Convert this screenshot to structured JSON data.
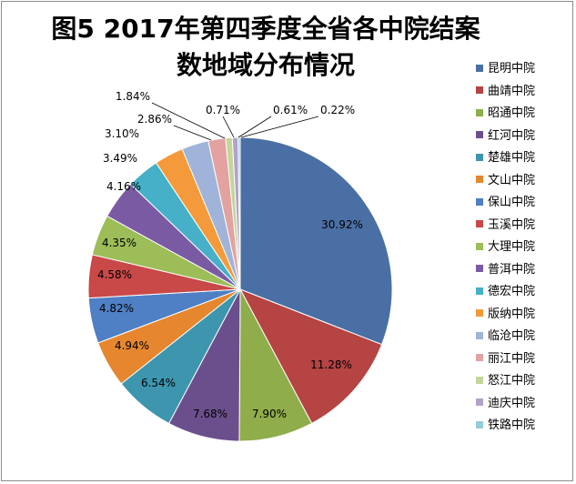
{
  "chart_data": {
    "type": "pie",
    "title_line1": "图5 2017年第四季度全省各中院结案",
    "title_line2": "数地域分布情况",
    "categories": [
      "昆明中院",
      "曲靖中院",
      "昭通中院",
      "红河中院",
      "楚雄中院",
      "文山中院",
      "保山中院",
      "玉溪中院",
      "大理中院",
      "普洱中院",
      "德宏中院",
      "版纳中院",
      "临沧中院",
      "丽江中院",
      "怒江中院",
      "迪庆中院",
      "铁路中院"
    ],
    "values": [
      30.92,
      11.28,
      7.9,
      7.68,
      6.54,
      4.94,
      4.82,
      4.58,
      4.35,
      4.16,
      3.49,
      3.1,
      2.86,
      1.84,
      0.71,
      0.61,
      0.22
    ],
    "labels": [
      "30.92%",
      "11.28%",
      "7.90%",
      "7.68%",
      "6.54%",
      "4.94%",
      "4.82%",
      "4.58%",
      "4.35%",
      "4.16%",
      "3.49%",
      "3.10%",
      "2.86%",
      "1.84%",
      "0.71%",
      "0.61%",
      "0.22%"
    ],
    "colors": [
      "#4a6fa5",
      "#b54442",
      "#8fad4a",
      "#6b4f8c",
      "#3d95ae",
      "#e6862e",
      "#4f7fc4",
      "#c94848",
      "#9cbd58",
      "#7a5ba3",
      "#46b0c8",
      "#f59a3a",
      "#9fb4d8",
      "#e3a2a0",
      "#c3d69b",
      "#b3a2c7",
      "#93cddd"
    ],
    "legend_position": "right"
  }
}
